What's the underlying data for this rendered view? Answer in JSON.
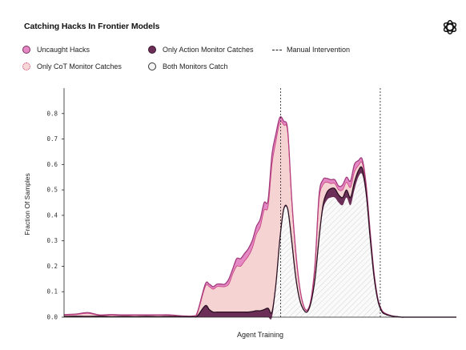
{
  "header": {
    "title": "Catching Hacks In Frontier Models",
    "logo": "openai-logo-icon"
  },
  "legend": [
    {
      "label": "Uncaught Hacks",
      "color": "#e589c4",
      "style": "filled"
    },
    {
      "label": "Only Action Monitor Catches",
      "color": "#6b2f57",
      "style": "filled"
    },
    {
      "label": "Manual Intervention",
      "color": "#222222",
      "style": "dashed-line"
    },
    {
      "label": "Only CoT Monitor Catches",
      "color": "#f5d3d3",
      "style": "dotted-border"
    },
    {
      "label": "Both Monitors Catch",
      "color": "#f2f2f2",
      "style": "hatched"
    }
  ],
  "chart_data": {
    "type": "area",
    "title": "Catching Hacks In Frontier Models",
    "xlabel": "Agent Training",
    "ylabel": "Fraction Of Samples",
    "ylim": [
      0,
      0.9
    ],
    "xlim": [
      0,
      100
    ],
    "yticks": [
      "0.0",
      "0.1",
      "0.2",
      "0.3",
      "0.4",
      "0.5",
      "0.6",
      "0.7",
      "0.8"
    ],
    "manual_interventions_x": [
      55.2,
      80.6
    ],
    "x": [
      0,
      3,
      6,
      9,
      12,
      15,
      18,
      21,
      24,
      27,
      30,
      33,
      34,
      36,
      37,
      38,
      39,
      40,
      41,
      42,
      43,
      44,
      45,
      46,
      47,
      48,
      49,
      50,
      51,
      52,
      53,
      54,
      55,
      56,
      57,
      58,
      59,
      60,
      61,
      62,
      63,
      64,
      65,
      66,
      67,
      68,
      69,
      70,
      71,
      72,
      73,
      74,
      75,
      76,
      77,
      78,
      79,
      80,
      81,
      82,
      83,
      84,
      85,
      86,
      87,
      88,
      90,
      93,
      96,
      100
    ],
    "series": [
      {
        "name": "Both Monitors Catch",
        "values": [
          0,
          0,
          0,
          0,
          0,
          0,
          0,
          0,
          0,
          0,
          0,
          0,
          0,
          0,
          0,
          0,
          0,
          0,
          0,
          0,
          0,
          0,
          0,
          0,
          0,
          0,
          0,
          0,
          0,
          0,
          0,
          0.12,
          0.3,
          0.42,
          0.42,
          0.3,
          0.16,
          0.07,
          0.03,
          0.02,
          0.06,
          0.15,
          0.3,
          0.42,
          0.46,
          0.47,
          0.47,
          0.45,
          0.44,
          0.47,
          0.44,
          0.5,
          0.55,
          0.56,
          0.47,
          0.3,
          0.15,
          0.06,
          0.02,
          0.01,
          0.005,
          0.003,
          0.002,
          0,
          0,
          0,
          0,
          0,
          0,
          0
        ]
      },
      {
        "name": "Only Action Monitor Catches",
        "values": [
          0.003,
          0.004,
          0.003,
          0.004,
          0.002,
          0.003,
          0.002,
          0.003,
          0.002,
          0.003,
          0.002,
          0.002,
          0.005,
          0.045,
          0.03,
          0.02,
          0.02,
          0.02,
          0.02,
          0.02,
          0.02,
          0.02,
          0.02,
          0.02,
          0.02,
          0.022,
          0.025,
          0.025,
          0.03,
          0.035,
          0.02,
          0.01,
          0.005,
          0.005,
          0.005,
          0.003,
          0.003,
          0.002,
          0.001,
          0.001,
          0.002,
          0.005,
          0.01,
          0.02,
          0.03,
          0.035,
          0.035,
          0.03,
          0.03,
          0.03,
          0.03,
          0.03,
          0.025,
          0.025,
          0.02,
          0.015,
          0.01,
          0.004,
          0.002,
          0.001,
          0.001,
          0,
          0,
          0,
          0,
          0,
          0,
          0,
          0,
          0
        ]
      },
      {
        "name": "Only CoT Monitor Catches",
        "values": [
          0.005,
          0.006,
          0.012,
          0.003,
          0.006,
          0.004,
          0.005,
          0.004,
          0.005,
          0.004,
          0.002,
          0.002,
          0.01,
          0.075,
          0.09,
          0.09,
          0.1,
          0.1,
          0.1,
          0.11,
          0.15,
          0.18,
          0.18,
          0.2,
          0.22,
          0.25,
          0.3,
          0.33,
          0.39,
          0.4,
          0.58,
          0.56,
          0.46,
          0.33,
          0.3,
          0.16,
          0.1,
          0.05,
          0.015,
          0.005,
          0.01,
          0.05,
          0.15,
          0.08,
          0.04,
          0.02,
          0.02,
          0.02,
          0.03,
          0.03,
          0.04,
          0.04,
          0.02,
          0.02,
          0.02,
          0.015,
          0.01,
          0.005,
          0.003,
          0.002,
          0.001,
          0.001,
          0,
          0,
          0,
          0,
          0,
          0,
          0,
          0
        ]
      },
      {
        "name": "Uncaught Hacks",
        "values": [
          0.002,
          0.002,
          0.003,
          0.002,
          0.002,
          0.002,
          0.002,
          0.002,
          0.002,
          0.002,
          0.001,
          0.001,
          0.005,
          0.01,
          0.01,
          0.01,
          0.01,
          0.01,
          0.01,
          0.02,
          0.02,
          0.03,
          0.03,
          0.03,
          0.03,
          0.03,
          0.03,
          0.03,
          0.03,
          0.025,
          0.04,
          0.03,
          0.02,
          0.015,
          0.01,
          0.01,
          0.005,
          0.003,
          0.002,
          0.002,
          0.003,
          0.01,
          0.02,
          0.02,
          0.015,
          0.015,
          0.015,
          0.015,
          0.02,
          0.02,
          0.025,
          0.03,
          0.02,
          0.015,
          0.01,
          0.01,
          0.006,
          0.003,
          0.002,
          0.001,
          0.001,
          0,
          0,
          0,
          0,
          0,
          0,
          0,
          0,
          0
        ]
      }
    ]
  }
}
